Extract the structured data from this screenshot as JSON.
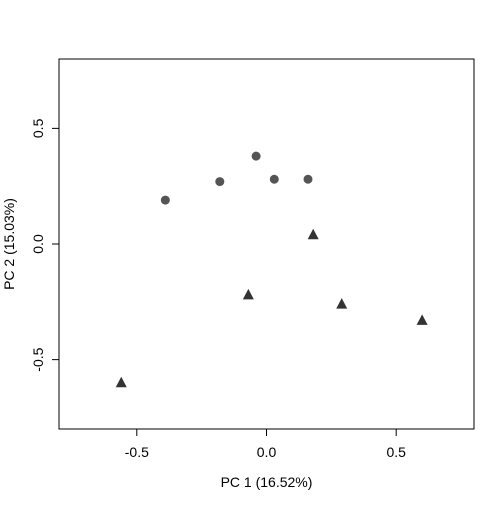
{
  "chart_data": {
    "type": "scatter",
    "title": "",
    "xlabel": "PC 1 (16.52%)",
    "ylabel": "PC 2 (15.03%)",
    "xlim": [
      -0.8,
      0.8
    ],
    "ylim": [
      -0.8,
      0.8
    ],
    "xticks": [
      -0.5,
      0.0,
      0.5
    ],
    "yticks": [
      -0.5,
      0.0,
      0.5
    ],
    "xtick_labels": [
      "-0.5",
      "0.0",
      "0.5"
    ],
    "ytick_labels": [
      "-0.5",
      "0.0",
      "0.5"
    ],
    "grid": false,
    "legend": null,
    "series": [
      {
        "marker": "circle",
        "color": "#555555",
        "points": [
          {
            "x": -0.39,
            "y": 0.19
          },
          {
            "x": -0.18,
            "y": 0.27
          },
          {
            "x": -0.04,
            "y": 0.38
          },
          {
            "x": 0.03,
            "y": 0.28
          },
          {
            "x": 0.16,
            "y": 0.28
          }
        ]
      },
      {
        "marker": "triangle",
        "color": "#333333",
        "points": [
          {
            "x": 0.18,
            "y": 0.04
          },
          {
            "x": -0.07,
            "y": -0.22
          },
          {
            "x": 0.29,
            "y": -0.26
          },
          {
            "x": 0.6,
            "y": -0.33
          },
          {
            "x": -0.56,
            "y": -0.6
          }
        ]
      }
    ]
  }
}
